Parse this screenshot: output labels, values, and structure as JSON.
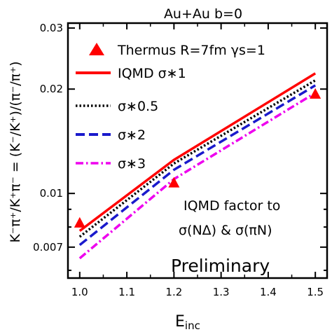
{
  "chart_data": {
    "type": "line",
    "title": "Au+Au b=0",
    "xlabel": "E",
    "xlabel_sub": "inc",
    "ylabel": "K⁻π⁺/K⁺π⁻ = (K⁻/K⁺)/(π⁻/π⁺)",
    "xlim": [
      0.975,
      1.525
    ],
    "ylim": [
      0.0057,
      0.031
    ],
    "yscale": "log",
    "x_ticks": [
      1.0,
      1.1,
      1.2,
      1.3,
      1.4,
      1.5
    ],
    "x_tick_labels": [
      "1.0",
      "1.1",
      "1.2",
      "1.3",
      "1.4",
      "1.5"
    ],
    "y_ticks": [
      0.007,
      0.01,
      0.02,
      0.03
    ],
    "y_tick_labels": [
      "0.007",
      "0.01",
      "0.02",
      "0.03"
    ],
    "grid": false,
    "legend_position": "top-left",
    "series": [
      {
        "name": "Thermus R=7fm γs=1",
        "kind": "marker",
        "color": "#ff0000",
        "x": [
          1.0,
          1.2,
          1.5
        ],
        "y": [
          0.0082,
          0.0107,
          0.0193
        ]
      },
      {
        "name": "IQMD σ∗1",
        "kind": "line",
        "dash": "solid",
        "color": "#ff0000",
        "x": [
          1.0,
          1.2,
          1.5
        ],
        "y": [
          0.0078,
          0.0125,
          0.0222
        ]
      },
      {
        "name": "σ∗0.5",
        "kind": "line",
        "dash": "dotted",
        "color": "#000000",
        "x": [
          1.0,
          1.2,
          1.5
        ],
        "y": [
          0.0075,
          0.0122,
          0.0212
        ]
      },
      {
        "name": "σ∗2",
        "kind": "line",
        "dash": "dashed",
        "color": "#1a1acc",
        "x": [
          1.0,
          1.2,
          1.5
        ],
        "y": [
          0.0071,
          0.0117,
          0.0205
        ]
      },
      {
        "name": "σ∗3",
        "kind": "line",
        "dash": "dashdot",
        "color": "#ee00ee",
        "x": [
          1.0,
          1.2,
          1.5
        ],
        "y": [
          0.0065,
          0.011,
          0.0195
        ]
      }
    ],
    "annotations": [
      "IQMD factor to",
      "σ(NΔ) & σ(πN)",
      "Preliminary"
    ]
  }
}
